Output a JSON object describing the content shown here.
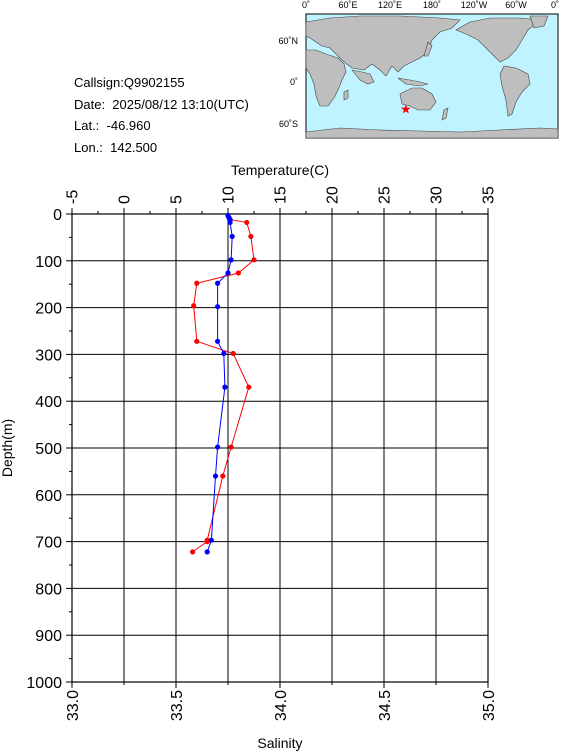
{
  "info": {
    "callsign": "Callsign:Q9902155",
    "date": "Date:  2025/08/12 13:10(UTC)",
    "lat": "Lat.:  -46.960",
    "lon": "Lon.:  142.500"
  },
  "map": {
    "lon_labels": [
      "0˚",
      "60˚E",
      "120˚E",
      "180˚",
      "120˚W",
      "60˚W",
      "0˚"
    ],
    "lat_labels": [
      "60˚N",
      "0˚",
      "60˚S"
    ],
    "ocean_color": "#bff3ff",
    "land_color": "#bebebe",
    "marker": {
      "lon": 142.5,
      "lat": -46.96,
      "symbol": "★",
      "color": "#ff0000"
    }
  },
  "chart_data": {
    "type": "line",
    "top_axis_label": "Temperature(C)",
    "bottom_axis_label": "Salinity",
    "y_axis_label": "Depth(m)",
    "temperature_ticks": [
      "-5",
      "0",
      "5",
      "10",
      "15",
      "20",
      "25",
      "30",
      "35"
    ],
    "salinity_ticks": [
      "33.0",
      "33.5",
      "34.0",
      "34.5",
      "35.0"
    ],
    "depth_ticks": [
      "0",
      "100",
      "200",
      "300",
      "400",
      "500",
      "600",
      "700",
      "800",
      "900",
      "1000"
    ],
    "temperature_range": [
      -5,
      35
    ],
    "salinity_range": [
      33.0,
      35.0
    ],
    "depth_range": [
      0,
      1000
    ],
    "grid": true,
    "series": [
      {
        "color": "#ff0000",
        "axis": "temperature",
        "points": [
          [
            10.0,
            3
          ],
          [
            10.1,
            8
          ],
          [
            10.2,
            12
          ],
          [
            11.8,
            18
          ],
          [
            12.2,
            48
          ],
          [
            12.5,
            98
          ],
          [
            11.0,
            126
          ],
          [
            7.0,
            148
          ],
          [
            6.7,
            196
          ],
          [
            7.0,
            272
          ],
          [
            10.5,
            298
          ],
          [
            12.0,
            370
          ],
          [
            10.3,
            498
          ],
          [
            9.5,
            560
          ],
          [
            8.0,
            697
          ],
          [
            8.0,
            700
          ],
          [
            6.6,
            722
          ]
        ]
      },
      {
        "color": "#0000ff",
        "axis": "salinity",
        "points": [
          [
            33.75,
            3
          ],
          [
            33.755,
            8
          ],
          [
            33.76,
            12
          ],
          [
            33.76,
            18
          ],
          [
            33.77,
            48
          ],
          [
            33.765,
            98
          ],
          [
            33.75,
            126
          ],
          [
            33.7,
            148
          ],
          [
            33.7,
            198
          ],
          [
            33.7,
            272
          ],
          [
            33.73,
            298
          ],
          [
            33.735,
            370
          ],
          [
            33.7,
            498
          ],
          [
            33.69,
            560
          ],
          [
            33.67,
            697
          ],
          [
            33.65,
            722
          ]
        ]
      }
    ]
  }
}
